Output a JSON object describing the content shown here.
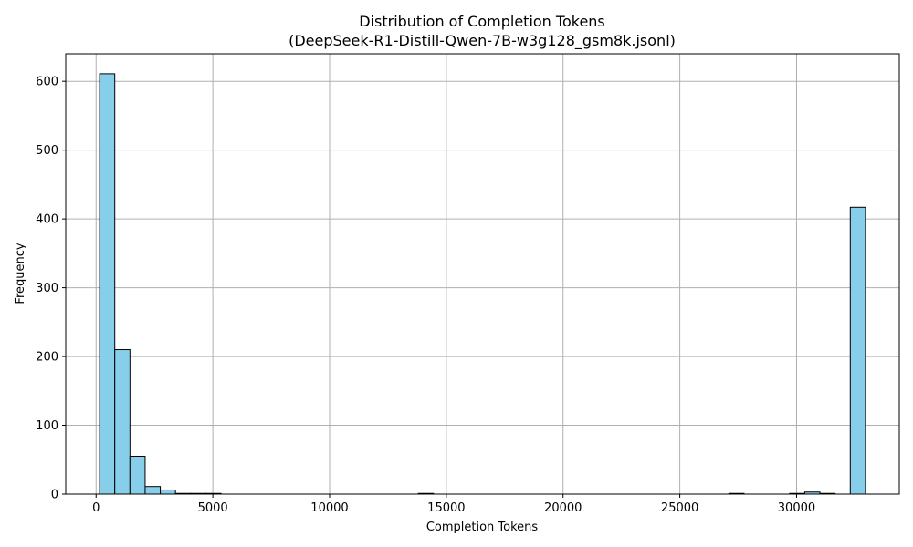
{
  "chart_data": {
    "type": "bar",
    "title_line1": "Distribution of Completion Tokens",
    "title_line2": "(DeepSeek-R1-Distill-Qwen-7B-w3g128_gsm8k.jsonl)",
    "xlabel": "Completion Tokens",
    "ylabel": "Frequency",
    "xlim": [
      -1300,
      34400
    ],
    "ylim": [
      0,
      640
    ],
    "grid": true,
    "bar_color": "#87ceeb",
    "edge_color": "#000000",
    "bin_width": 650,
    "bin_starts": [
      150,
      800,
      1450,
      2100,
      2750,
      3400,
      4050,
      4700,
      13800,
      27100,
      29700,
      30350,
      31000,
      32300
    ],
    "values": [
      611,
      210,
      55,
      11,
      6,
      1,
      1,
      1,
      1,
      1,
      1,
      3,
      1,
      417
    ],
    "x_ticks": [
      0,
      5000,
      10000,
      15000,
      20000,
      25000,
      30000
    ],
    "y_ticks": [
      0,
      100,
      200,
      300,
      400,
      500,
      600
    ]
  }
}
